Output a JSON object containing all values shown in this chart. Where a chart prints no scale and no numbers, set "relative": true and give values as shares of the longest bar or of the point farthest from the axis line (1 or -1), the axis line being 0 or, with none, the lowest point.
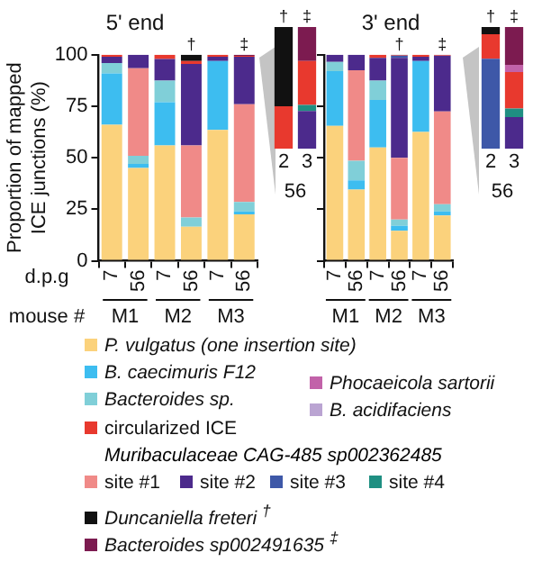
{
  "chart_data": [
    {
      "type": "bar",
      "title": "5' end",
      "ylabel": "Proportion of mapped ICE junctions (%)",
      "categories": [
        "7",
        "56",
        "7",
        "56",
        "7",
        "56"
      ],
      "stacked": true,
      "ylim": [
        0,
        100
      ],
      "yticks": [
        0,
        25,
        50,
        75,
        100
      ],
      "legend": "bottom",
      "annotations": [
        "†",
        "‡",
        "d.p.g",
        "mouse #",
        "M1",
        "M2",
        "M3",
        "Muribaculaceae CAG-485 sp002362485"
      ],
      "series": [
        {
          "name": "P. vulgatus  (one insertion site)",
          "color": "#fbd27c",
          "values": [
            66,
            45,
            56,
            16.5,
            63.5,
            22.5
          ]
        },
        {
          "name": "B. caecimuris F12",
          "color": "#3dbdf0",
          "values": [
            25,
            2,
            21,
            0,
            33.5,
            1.5
          ]
        },
        {
          "name": "Bacteroides sp.",
          "color": "#80cfd8",
          "values": [
            5,
            4,
            10.5,
            4.5,
            0,
            4.5
          ]
        },
        {
          "name": "site #1",
          "color": "#f08a88",
          "values": [
            0,
            42.5,
            0,
            35,
            0,
            47.5
          ]
        },
        {
          "name": "site #2",
          "color": "#4c2a8c",
          "values": [
            3,
            6.5,
            10.5,
            39.5,
            2,
            23
          ]
        },
        {
          "name": "site #3",
          "color": "#3e58a8",
          "values": [
            0,
            0,
            0,
            0,
            0,
            0
          ]
        },
        {
          "name": "site #4",
          "color": "#1f8f82",
          "values": [
            0,
            0,
            0,
            0,
            0,
            0
          ]
        },
        {
          "name": "circularized ICE",
          "color": "#e8392e",
          "values": [
            1,
            0,
            2,
            1.5,
            1,
            0.5
          ]
        },
        {
          "name": "Duncaniella freteri $^{†}$",
          "color": "#111111",
          "values": [
            0,
            0,
            0,
            3,
            0,
            0
          ]
        },
        {
          "name": "Bacteroides sp002491635 $^{‡}$",
          "color": "#7c1b50",
          "values": [
            0,
            0,
            0,
            0,
            0,
            0.5
          ]
        },
        {
          "name": "Phocaeicola sartorii",
          "color": "#c262a9",
          "values": [
            0,
            0,
            0,
            0,
            0,
            0
          ]
        },
        {
          "name": "B. acidifaciens",
          "color": "#baa4d2",
          "values": [
            0,
            0,
            0,
            0,
            0,
            0
          ]
        }
      ]
    },
    {
      "type": "bar",
      "categories": [
        "2",
        "3"
      ],
      "xlabel": "56",
      "stacked": true,
      "relative": true,
      "annotations": [
        "†",
        "‡"
      ],
      "series": [
        {
          "color": "#4c2a8c",
          "values": [
            0,
            0.31
          ]
        },
        {
          "color": "#1f8f82",
          "values": [
            0,
            0.05
          ]
        },
        {
          "color": "#e8392e",
          "values": [
            0.35,
            0.36
          ]
        },
        {
          "color": "#111111",
          "values": [
            0.65,
            0
          ]
        },
        {
          "color": "#7c1b50",
          "values": [
            0,
            0.28
          ]
        }
      ]
    },
    {
      "type": "bar",
      "title": "3' end",
      "categories": [
        "7",
        "56",
        "7",
        "56",
        "7",
        "56"
      ],
      "stacked": true,
      "ylim": [
        0,
        100
      ],
      "yticks": [
        0,
        25,
        50,
        75,
        100
      ],
      "tick_labels": "x",
      "annotations": [
        "†",
        "‡",
        "M1",
        "M2",
        "M3"
      ],
      "series": [
        {
          "color": "#fbd27c",
          "values": [
            65.5,
            34.5,
            55,
            14.5,
            62.5,
            22
          ]
        },
        {
          "color": "#3dbdf0",
          "values": [
            26.5,
            4.5,
            23,
            2.5,
            34.5,
            2
          ]
        },
        {
          "color": "#80cfd8",
          "values": [
            4.5,
            9.5,
            9.5,
            3,
            0,
            3.5
          ]
        },
        {
          "color": "#f08a88",
          "values": [
            0,
            44,
            0,
            30,
            0,
            45
          ]
        },
        {
          "color": "#4c2a8c",
          "values": [
            3.5,
            7.5,
            11,
            48.5,
            2,
            27
          ]
        },
        {
          "color": "#3e58a8",
          "values": [
            0,
            0,
            0,
            1.1,
            0,
            0
          ]
        },
        {
          "color": "#e8392e",
          "values": [
            0,
            0,
            1.5,
            0.3,
            1,
            0.2
          ]
        },
        {
          "color": "#111111",
          "values": [
            0,
            0,
            0,
            0.1,
            0,
            0
          ]
        },
        {
          "color": "#7c1b50",
          "values": [
            0,
            0,
            0,
            0,
            0,
            0.3
          ]
        }
      ]
    },
    {
      "type": "bar",
      "categories": [
        "2",
        "3"
      ],
      "xlabel": "56",
      "stacked": true,
      "relative": true,
      "annotations": [
        "†",
        "‡"
      ],
      "series": [
        {
          "color": "#4c2a8c",
          "values": [
            0,
            0.26
          ]
        },
        {
          "color": "#3e58a8",
          "values": [
            0.74,
            0
          ]
        },
        {
          "color": "#1f8f82",
          "values": [
            0,
            0.07
          ]
        },
        {
          "color": "#e8392e",
          "values": [
            0.2,
            0.3
          ]
        },
        {
          "color": "#c262a9",
          "values": [
            0,
            0.06
          ]
        },
        {
          "color": "#111111",
          "values": [
            0.06,
            0
          ]
        },
        {
          "color": "#7c1b50",
          "values": [
            0,
            0.31
          ]
        }
      ]
    }
  ]
}
